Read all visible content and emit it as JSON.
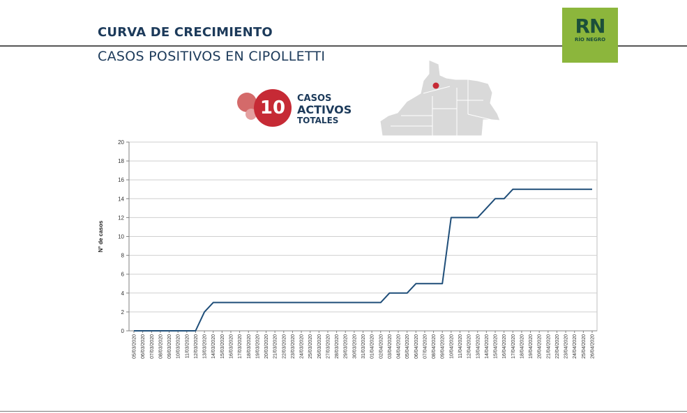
{
  "header": {
    "title": "CURVA DE CRECIMIENTO",
    "subtitle": "CASOS POSITIVOS EN CIPOLLETTI"
  },
  "logo": {
    "mark": "RN",
    "text": "RÍO NEGRO"
  },
  "badge": {
    "number": "10",
    "line1": "CASOS",
    "line2": "ACTIVOS",
    "line3": "TOTALES"
  },
  "map": {
    "icon": "rio-negro-province-map-icon",
    "marker": "Cipolletti"
  },
  "colors": {
    "title": "#1c3a5a",
    "line": "#1f4e79",
    "badge": "#c62a35",
    "logo_bg": "#8cb63c",
    "map": "#d9d9d9"
  },
  "chart_data": {
    "type": "line",
    "title": "",
    "xlabel": "",
    "ylabel": "N° de casos",
    "ylim": [
      0,
      20
    ],
    "yticks": [
      0,
      2,
      4,
      6,
      8,
      10,
      12,
      14,
      16,
      18,
      20
    ],
    "grid": true,
    "categories": [
      "05/03/2020",
      "06/03/2020",
      "07/03/2020",
      "08/03/2020",
      "09/03/2020",
      "10/03/2020",
      "11/03/2020",
      "12/03/2020",
      "13/03/2020",
      "14/03/2020",
      "15/03/2020",
      "16/03/2020",
      "17/03/2020",
      "18/03/2020",
      "19/03/2020",
      "20/03/2020",
      "21/03/2020",
      "22/03/2020",
      "23/03/2020",
      "24/03/2020",
      "25/03/2020",
      "26/03/2020",
      "27/03/2020",
      "28/03/2020",
      "29/03/2020",
      "30/03/2020",
      "31/03/2020",
      "01/04/2020",
      "02/04/2020",
      "03/04/2020",
      "04/04/2020",
      "05/04/2020",
      "06/04/2020",
      "07/04/2020",
      "08/04/2020",
      "09/04/2020",
      "10/04/2020",
      "11/04/2020",
      "12/04/2020",
      "13/04/2020",
      "14/04/2020",
      "15/04/2020",
      "16/04/2020",
      "17/04/2020",
      "18/04/2020",
      "19/04/2020",
      "20/04/2020",
      "21/04/2020",
      "22/04/2020",
      "23/04/2020",
      "24/04/2020",
      "25/04/2020",
      "26/04/2020"
    ],
    "series": [
      {
        "name": "Casos positivos",
        "values": [
          0,
          0,
          0,
          0,
          0,
          0,
          0,
          0,
          2,
          3,
          3,
          3,
          3,
          3,
          3,
          3,
          3,
          3,
          3,
          3,
          3,
          3,
          3,
          3,
          3,
          3,
          3,
          3,
          3,
          4,
          4,
          4,
          5,
          5,
          5,
          5,
          12,
          12,
          12,
          12,
          13,
          14,
          14,
          15,
          15,
          15,
          15,
          15,
          15,
          15,
          15,
          15,
          15
        ]
      }
    ]
  }
}
